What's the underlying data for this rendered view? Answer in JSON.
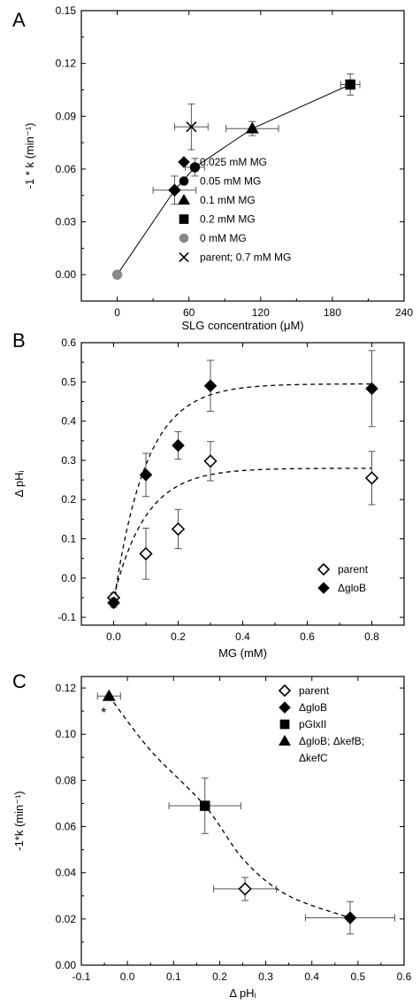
{
  "chart_data": [
    {
      "panel": "A",
      "type": "scatter",
      "xlabel": "SLG concentration (μM)",
      "ylabel": "-1 * k (min⁻¹)",
      "xlim": [
        -30,
        240
      ],
      "ylim": [
        -0.015,
        0.15
      ],
      "xticks": [
        0,
        60,
        120,
        180,
        240
      ],
      "yticks": [
        0.0,
        0.03,
        0.06,
        0.09,
        0.12,
        0.15
      ],
      "ytick_labels": [
        "0.00",
        "0.03",
        "0.06",
        "0.09",
        "0.12",
        "0.15"
      ],
      "legend_position": "lower-right",
      "series": [
        {
          "name": "0.025 mM MG",
          "marker": "diamond",
          "color": "#000000",
          "points": [
            {
              "x": 48,
              "y": 0.048,
              "xerr": 18,
              "yerr": 0.008
            }
          ]
        },
        {
          "name": "0.05 mM MG",
          "marker": "circle",
          "color": "#000000",
          "points": [
            {
              "x": 65,
              "y": 0.061,
              "xerr": 8,
              "yerr": 0.005
            }
          ]
        },
        {
          "name": "0.1 mM MG",
          "marker": "triangle",
          "color": "#000000",
          "points": [
            {
              "x": 113,
              "y": 0.083,
              "xerr": 22,
              "yerr": 0.004
            }
          ]
        },
        {
          "name": "0.2 mM MG",
          "marker": "square",
          "color": "#000000",
          "points": [
            {
              "x": 195,
              "y": 0.108,
              "xerr": 8,
              "yerr": 0.006
            }
          ]
        },
        {
          "name": "0 mM MG",
          "marker": "circle",
          "color": "#888888",
          "points": [
            {
              "x": 0,
              "y": 0.0,
              "xerr": 0,
              "yerr": 0
            }
          ]
        },
        {
          "name": "parent; 0.7 mM MG",
          "marker": "cross",
          "color": "#000000",
          "points": [
            {
              "x": 62,
              "y": 0.084,
              "xerr": 14,
              "yerr": 0.013
            }
          ]
        }
      ],
      "fit_line": {
        "style": "solid",
        "points": [
          [
            0,
            0.0
          ],
          [
            48,
            0.048
          ],
          [
            65,
            0.061
          ],
          [
            113,
            0.083
          ],
          [
            195,
            0.108
          ]
        ]
      }
    },
    {
      "panel": "B",
      "type": "scatter",
      "xlabel": "MG (mM)",
      "ylabel": "Δ pHᵢ",
      "xlim": [
        -0.1,
        0.9
      ],
      "ylim": [
        -0.12,
        0.6
      ],
      "xticks": [
        0.0,
        0.2,
        0.4,
        0.6,
        0.8
      ],
      "xtick_labels": [
        "0.0",
        "0.2",
        "0.4",
        "0.6",
        "0.8"
      ],
      "yticks": [
        -0.1,
        0.0,
        0.1,
        0.2,
        0.3,
        0.4,
        0.5,
        0.6
      ],
      "ytick_labels": [
        "-0.1",
        "0.0",
        "0.1",
        "0.2",
        "0.3",
        "0.4",
        "0.5",
        "0.6"
      ],
      "legend_position": "lower-right",
      "series": [
        {
          "name": "parent",
          "marker": "diamond-open",
          "color": "#000000",
          "points": [
            {
              "x": 0.0,
              "y": -0.05,
              "yerr": 0.012
            },
            {
              "x": 0.1,
              "y": 0.062,
              "yerr": 0.065
            },
            {
              "x": 0.2,
              "y": 0.125,
              "yerr": 0.05
            },
            {
              "x": 0.3,
              "y": 0.298,
              "yerr": 0.05
            },
            {
              "x": 0.8,
              "y": 0.255,
              "yerr": 0.068
            }
          ]
        },
        {
          "name": "ΔgloB",
          "marker": "diamond",
          "color": "#000000",
          "points": [
            {
              "x": 0.0,
              "y": -0.063,
              "yerr": 0.012
            },
            {
              "x": 0.1,
              "y": 0.263,
              "yerr": 0.055
            },
            {
              "x": 0.2,
              "y": 0.338,
              "yerr": 0.035
            },
            {
              "x": 0.3,
              "y": 0.49,
              "yerr": 0.065
            },
            {
              "x": 0.8,
              "y": 0.483,
              "yerr": 0.097
            }
          ]
        }
      ],
      "fit_curves": [
        {
          "style": "dashed",
          "a": 0.28,
          "b": 10,
          "c": -0.05
        },
        {
          "style": "dashed",
          "a": 0.495,
          "b": 10,
          "c": -0.065
        }
      ]
    },
    {
      "panel": "C",
      "type": "scatter",
      "xlabel": "Δ pHᵢ",
      "ylabel": "-1*k (min⁻¹)",
      "xlim": [
        -0.1,
        0.6
      ],
      "ylim": [
        0.0,
        0.125
      ],
      "xticks": [
        -0.1,
        0.0,
        0.1,
        0.2,
        0.3,
        0.4,
        0.5,
        0.6
      ],
      "xtick_labels": [
        "-0.1",
        "0.0",
        "0.1",
        "0.2",
        "0.3",
        "0.4",
        "0.5",
        "0.6"
      ],
      "yticks": [
        0.0,
        0.02,
        0.04,
        0.06,
        0.08,
        0.1,
        0.12
      ],
      "ytick_labels": [
        "0.00",
        "0.02",
        "0.04",
        "0.06",
        "0.08",
        "0.10",
        "0.12"
      ],
      "legend_position": "top-right",
      "series": [
        {
          "name": "parent",
          "marker": "diamond-open",
          "color": "#000000",
          "points": [
            {
              "x": 0.255,
              "y": 0.033,
              "xerr": 0.068,
              "yerr": 0.005
            }
          ]
        },
        {
          "name": "ΔgloB",
          "marker": "diamond",
          "color": "#000000",
          "points": [
            {
              "x": 0.483,
              "y": 0.0205,
              "xerr": 0.097,
              "yerr": 0.007
            }
          ]
        },
        {
          "name": "pGlxII",
          "marker": "square",
          "color": "#000000",
          "points": [
            {
              "x": 0.168,
              "y": 0.069,
              "xerr": 0.078,
              "yerr": 0.012
            }
          ]
        },
        {
          "name": "ΔgloB; ΔkefB;",
          "name_line2": "ΔkefC",
          "marker": "triangle",
          "color": "#000000",
          "points": [
            {
              "x": -0.04,
              "y": 0.1165,
              "xerr": 0.025,
              "yerr": 0.0
            }
          ]
        }
      ],
      "fit_curve": {
        "style": "dashed",
        "points": [
          [
            -0.04,
            0.1165
          ],
          [
            0.05,
            0.093
          ],
          [
            0.168,
            0.069
          ],
          [
            0.255,
            0.045
          ],
          [
            0.35,
            0.03
          ],
          [
            0.483,
            0.0205
          ]
        ]
      },
      "annotation": "*"
    }
  ]
}
